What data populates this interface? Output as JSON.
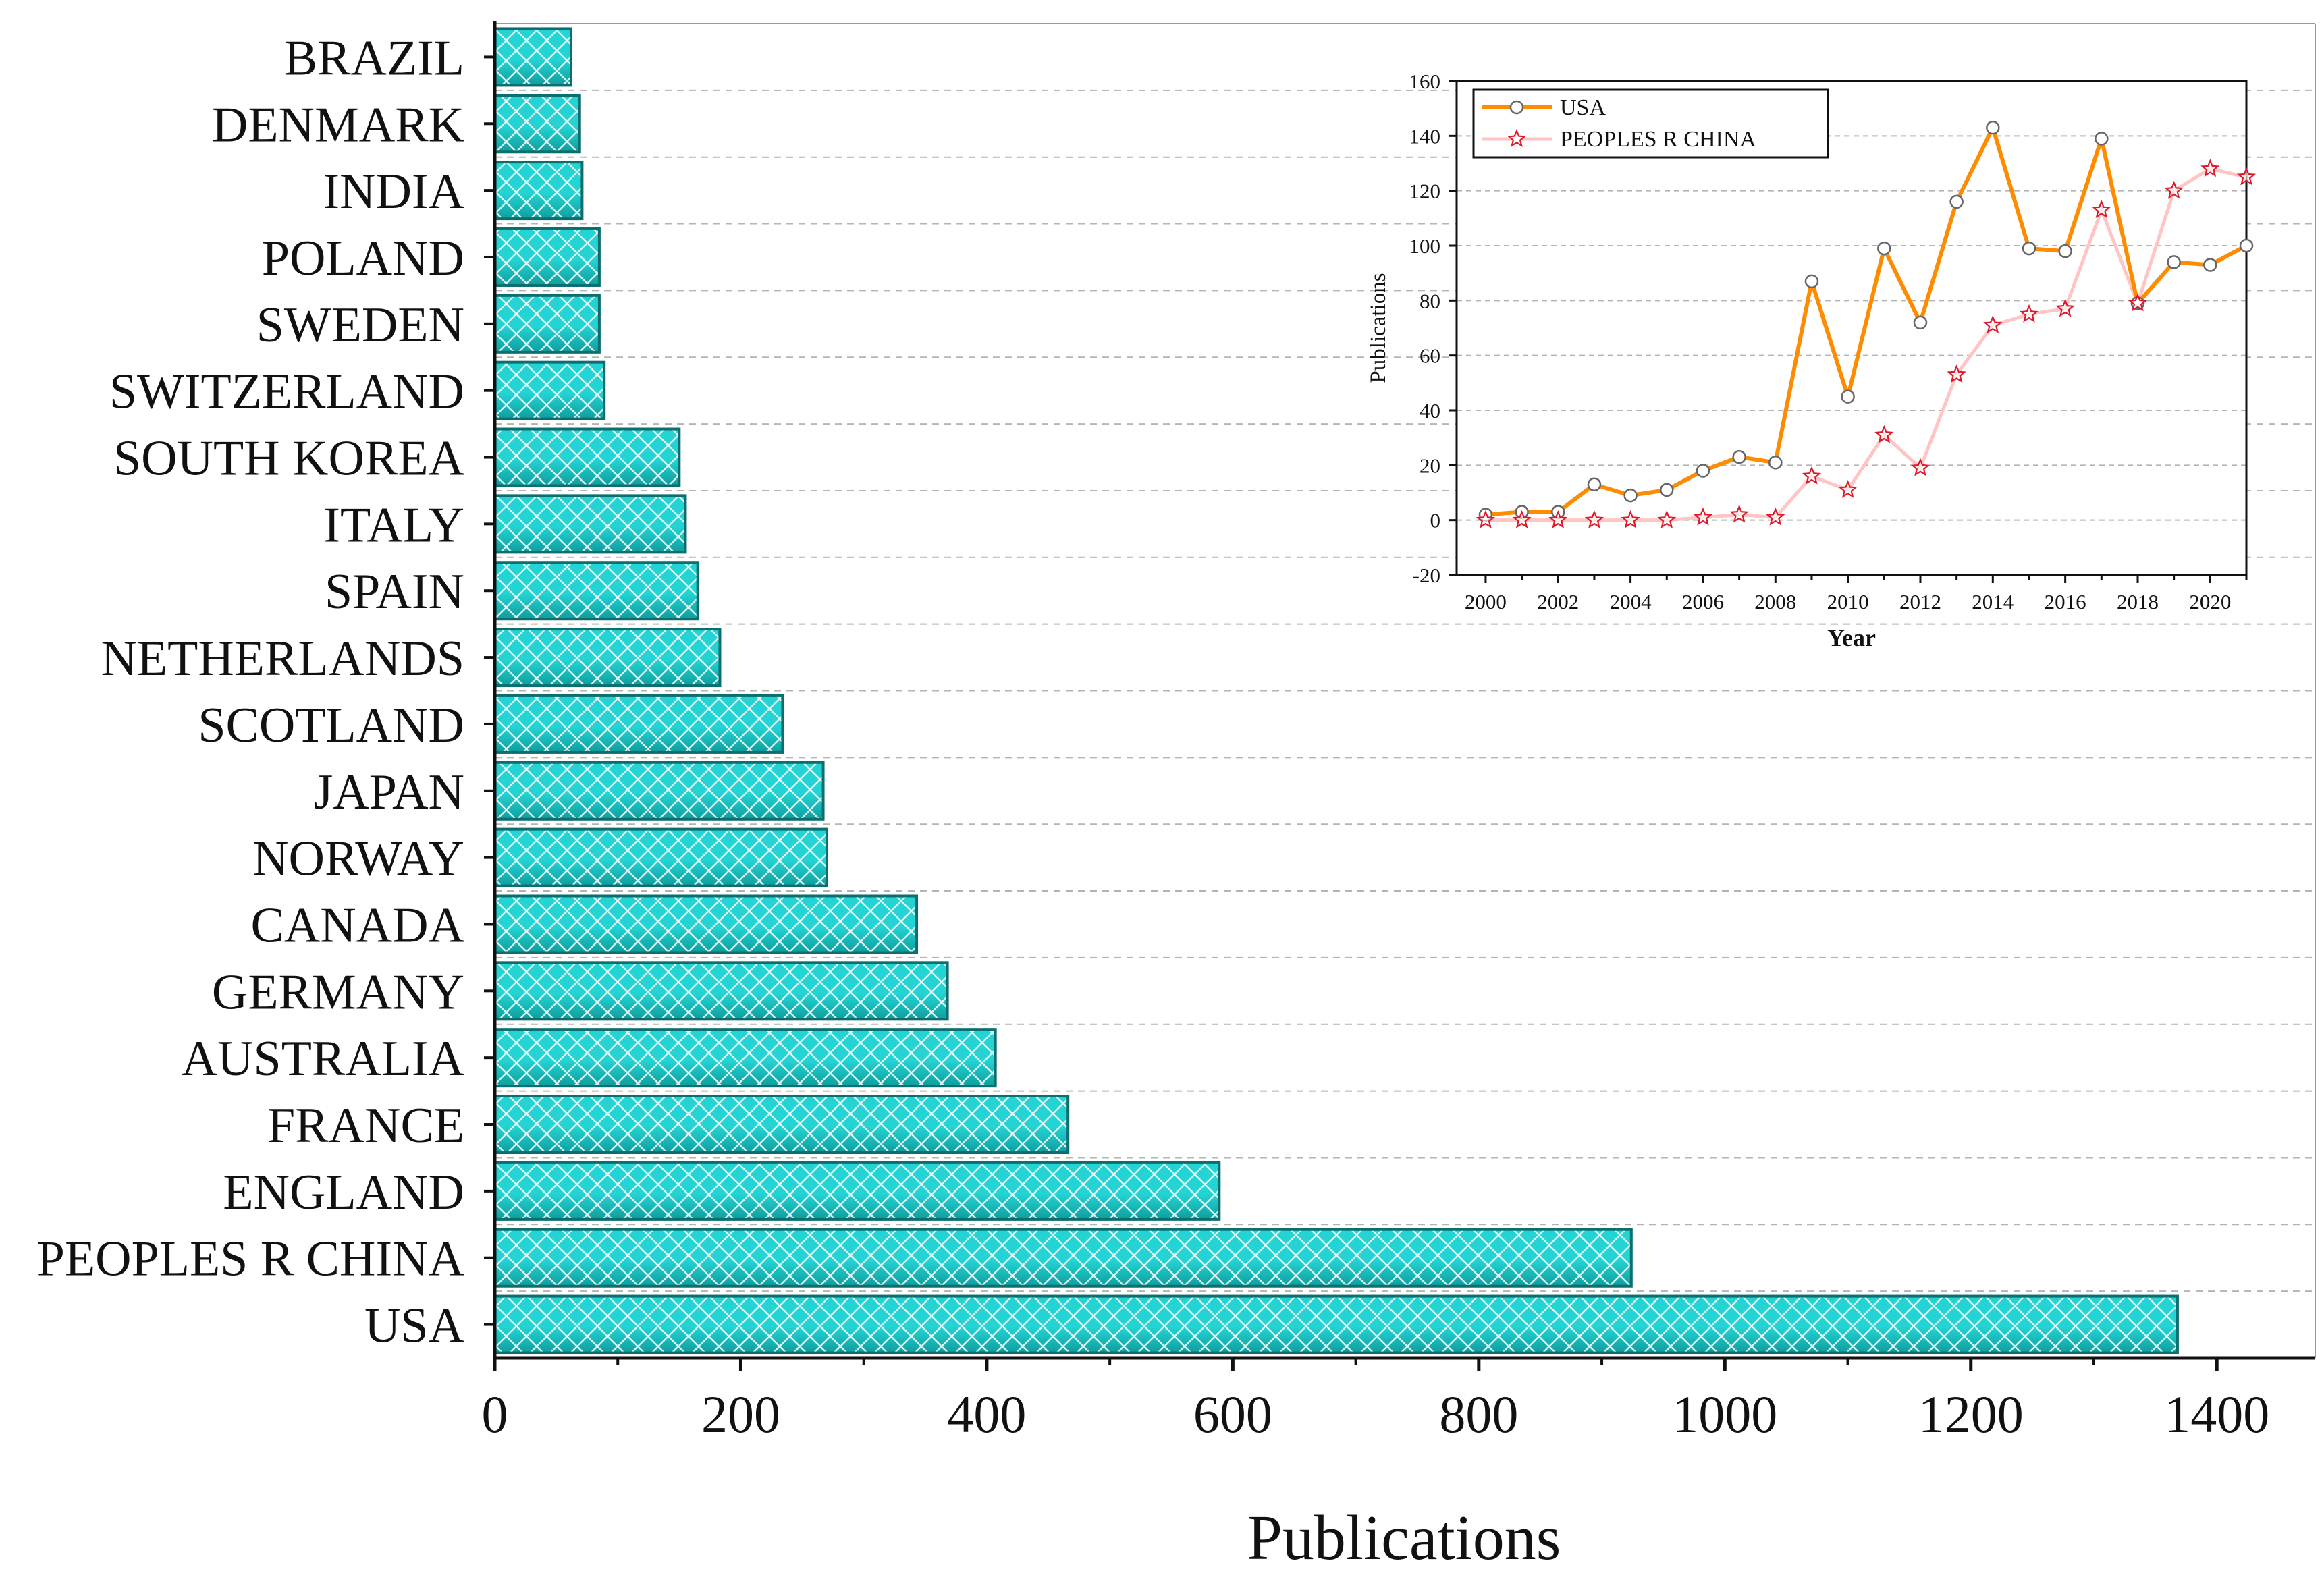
{
  "colors": {
    "bar_fill_main": "#24d3d3",
    "bar_fill_dark": "#0e9e9e",
    "bar_stroke": "#0b6f6f",
    "usa_line": "#ff8c00",
    "china_line": "#ffc4c4",
    "china_marker": "#e0192a",
    "grid": "#b4b4b4"
  },
  "chart_data": [
    {
      "type": "bar",
      "orientation": "horizontal",
      "xlabel": "Publications",
      "xlim": [
        0,
        1480
      ],
      "xticks": [
        0,
        200,
        400,
        600,
        800,
        1000,
        1200,
        1400
      ],
      "categories": [
        "BRAZIL",
        "DENMARK",
        "INDIA",
        "POLAND",
        "SWEDEN",
        "SWITZERLAND",
        "SOUTH KOREA",
        "ITALY",
        "SPAIN",
        "NETHERLANDS",
        "SCOTLAND",
        "JAPAN",
        "NORWAY",
        "CANADA",
        "GERMANY",
        "AUSTRALIA",
        "FRANCE",
        "ENGLAND",
        "PEOPLES R CHINA",
        "USA"
      ],
      "values": [
        62,
        69,
        71,
        85,
        85,
        89,
        150,
        155,
        165,
        183,
        234,
        267,
        270,
        343,
        368,
        407,
        466,
        589,
        924,
        1368
      ],
      "grid": "dashed horizontal"
    },
    {
      "type": "line",
      "inset": true,
      "xlabel": "Year",
      "ylabel": "Publications",
      "xlim": [
        1999.2,
        2021
      ],
      "ylim": [
        -20,
        160
      ],
      "xticks": [
        2000,
        2002,
        2004,
        2006,
        2008,
        2010,
        2012,
        2014,
        2016,
        2018,
        2020
      ],
      "yticks": [
        -20,
        0,
        20,
        40,
        60,
        80,
        100,
        120,
        140,
        160
      ],
      "x": [
        2000,
        2001,
        2002,
        2003,
        2004,
        2005,
        2006,
        2007,
        2008,
        2009,
        2010,
        2011,
        2012,
        2013,
        2014,
        2015,
        2016,
        2017,
        2018,
        2019,
        2020,
        2021
      ],
      "series": [
        {
          "name": "USA",
          "values": [
            2,
            3,
            3,
            13,
            9,
            11,
            18,
            23,
            21,
            87,
            45,
            99,
            72,
            116,
            143,
            99,
            98,
            139,
            79,
            94,
            93,
            100
          ]
        },
        {
          "name": "PEOPLES R CHINA",
          "values": [
            0,
            0,
            0,
            0,
            0,
            0,
            1,
            2,
            1,
            16,
            11,
            31,
            19,
            53,
            71,
            75,
            77,
            113,
            79,
            120,
            128,
            125
          ]
        }
      ],
      "legend": "top-left",
      "grid": "dashed horizontal"
    }
  ]
}
